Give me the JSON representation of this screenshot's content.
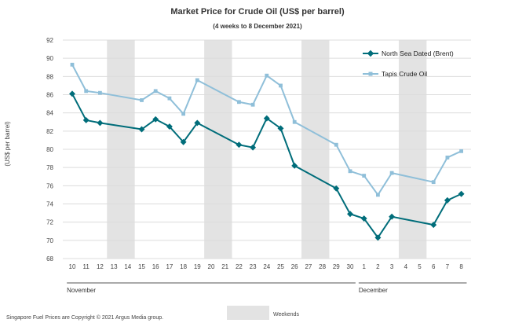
{
  "chart_data": {
    "type": "line",
    "title": "Market Price for Crude Oil (US$ per barrel)",
    "subtitle": "(4 weeks to 8 December 2021)",
    "ylabel": "(US$ per barrel)",
    "xlabel": "",
    "ylim": [
      68,
      92
    ],
    "yticks": [
      68,
      70,
      72,
      74,
      76,
      78,
      80,
      82,
      84,
      86,
      88,
      90,
      92
    ],
    "grid": true,
    "legend_position": "top-right",
    "x_labels": [
      "10",
      "11",
      "12",
      "13",
      "14",
      "15",
      "16",
      "17",
      "18",
      "19",
      "20",
      "21",
      "22",
      "23",
      "24",
      "25",
      "26",
      "27",
      "28",
      "29",
      "30",
      "1",
      "2",
      "3",
      "4",
      "5",
      "6",
      "7",
      "8"
    ],
    "months": [
      {
        "label": "November",
        "start_index": 0,
        "end_index": 20
      },
      {
        "label": "December",
        "start_index": 21,
        "end_index": 28
      }
    ],
    "weekend_ranges": [
      [
        3,
        4
      ],
      [
        10,
        11
      ],
      [
        17,
        18
      ],
      [
        24,
        25
      ]
    ],
    "series": [
      {
        "name": "North Sea Dated (Brent)",
        "color": "#006d7a",
        "marker": "diamond",
        "points": [
          {
            "i": 0,
            "v": 86.1
          },
          {
            "i": 1,
            "v": 83.2
          },
          {
            "i": 2,
            "v": 82.9
          },
          {
            "i": 5,
            "v": 82.2
          },
          {
            "i": 6,
            "v": 83.3
          },
          {
            "i": 7,
            "v": 82.5
          },
          {
            "i": 8,
            "v": 80.8
          },
          {
            "i": 9,
            "v": 82.9
          },
          {
            "i": 12,
            "v": 80.5
          },
          {
            "i": 13,
            "v": 80.2
          },
          {
            "i": 14,
            "v": 83.4
          },
          {
            "i": 15,
            "v": 82.3
          },
          {
            "i": 16,
            "v": 78.2
          },
          {
            "i": 19,
            "v": 75.7
          },
          {
            "i": 20,
            "v": 72.9
          },
          {
            "i": 21,
            "v": 72.4
          },
          {
            "i": 22,
            "v": 70.3
          },
          {
            "i": 23,
            "v": 72.6
          },
          {
            "i": 26,
            "v": 71.7
          },
          {
            "i": 27,
            "v": 74.4
          },
          {
            "i": 28,
            "v": 75.1
          }
        ]
      },
      {
        "name": "Tapis Crude Oil",
        "color": "#8fbfd9",
        "marker": "square",
        "points": [
          {
            "i": 0,
            "v": 89.3
          },
          {
            "i": 1,
            "v": 86.4
          },
          {
            "i": 2,
            "v": 86.2
          },
          {
            "i": 5,
            "v": 85.4
          },
          {
            "i": 6,
            "v": 86.4
          },
          {
            "i": 7,
            "v": 85.6
          },
          {
            "i": 8,
            "v": 83.9
          },
          {
            "i": 9,
            "v": 87.6
          },
          {
            "i": 12,
            "v": 85.2
          },
          {
            "i": 13,
            "v": 84.9
          },
          {
            "i": 14,
            "v": 88.1
          },
          {
            "i": 15,
            "v": 87.0
          },
          {
            "i": 16,
            "v": 83.0
          },
          {
            "i": 19,
            "v": 80.5
          },
          {
            "i": 20,
            "v": 77.6
          },
          {
            "i": 21,
            "v": 77.1
          },
          {
            "i": 22,
            "v": 75.0
          },
          {
            "i": 23,
            "v": 77.4
          },
          {
            "i": 26,
            "v": 76.4
          },
          {
            "i": 27,
            "v": 79.1
          },
          {
            "i": 28,
            "v": 79.8
          }
        ]
      }
    ]
  },
  "footer": {
    "copyright": "Singapore Fuel Prices are Copyright © 2021 Argus Media group.",
    "weekends_label": "Weekends"
  }
}
